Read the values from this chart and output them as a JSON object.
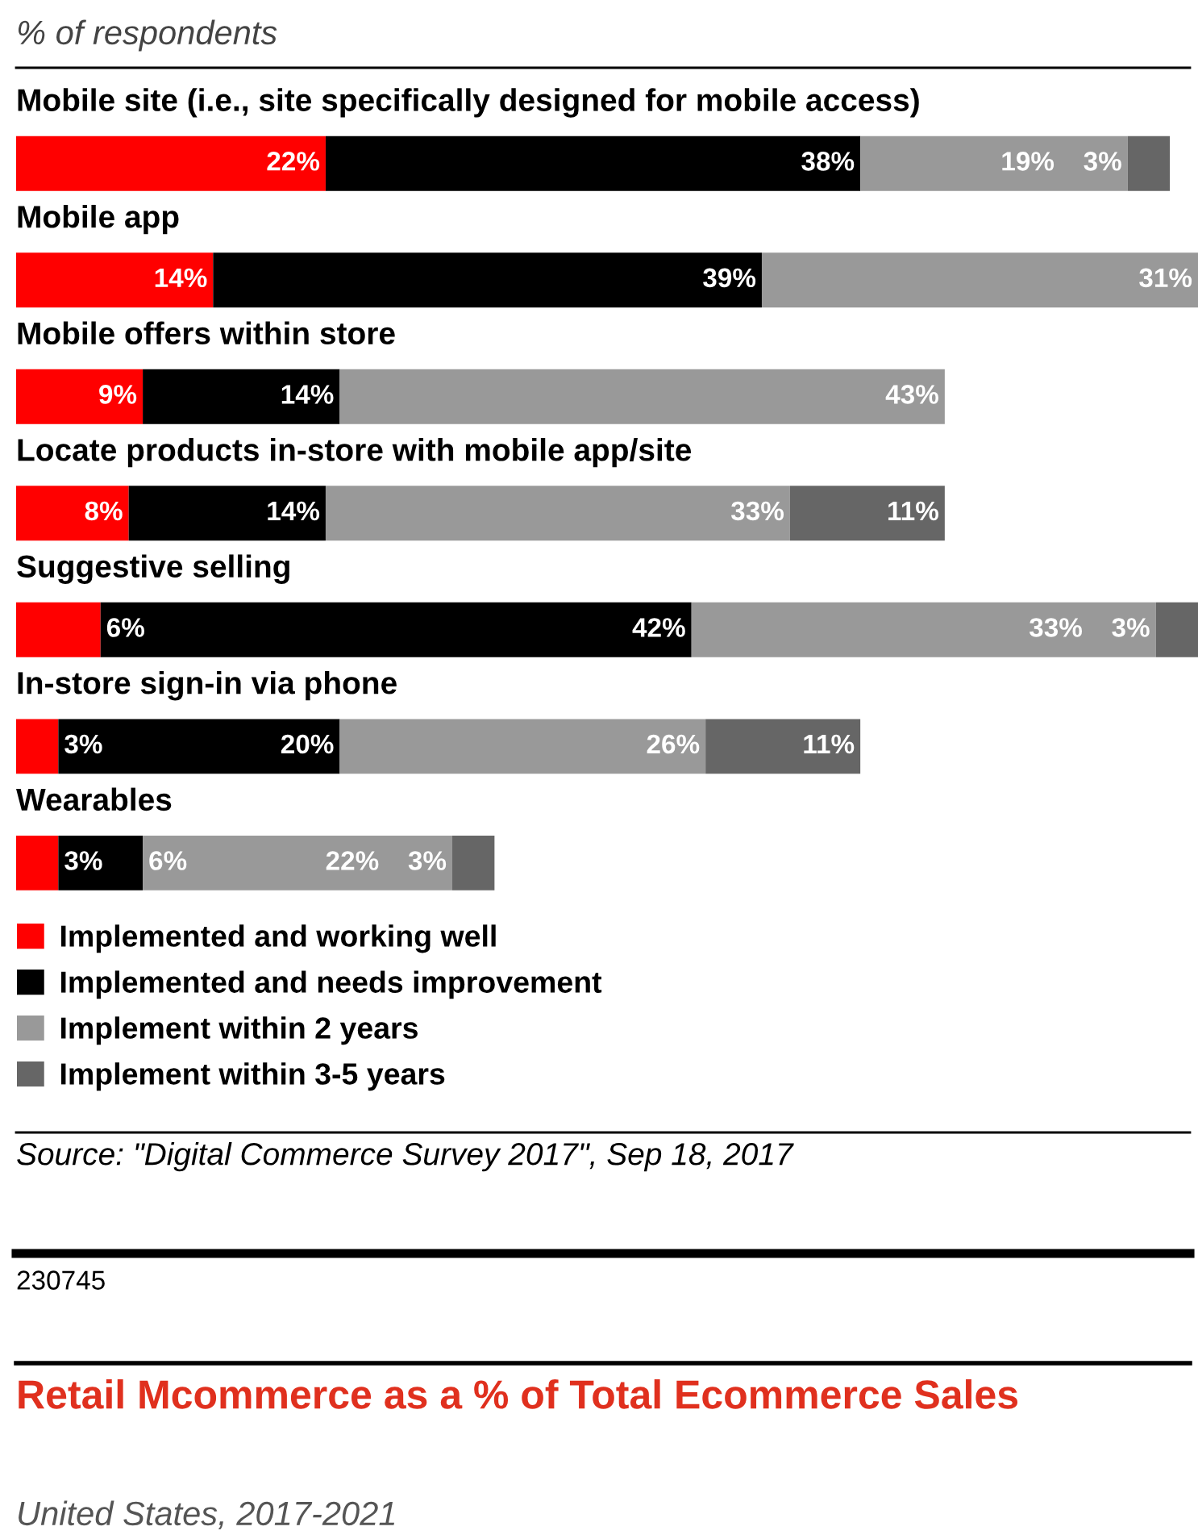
{
  "chart_data": {
    "type": "bar",
    "orientation": "horizontal",
    "stacked": true,
    "legend": "bottom",
    "title": "% of respondents",
    "categories": [
      "Mobile site (i.e., site specifically designed for mobile access)",
      "Mobile app",
      "Mobile offers within store",
      "Locate products in-store with mobile app/site",
      "Suggestive selling",
      "In-store sign-in via phone",
      "Wearables"
    ],
    "series": [
      {
        "name": "Implemented and working well",
        "color": "#ff0000",
        "values": [
          22,
          14,
          9,
          8,
          6,
          3,
          3
        ],
        "value_labels": [
          "22%",
          "14%",
          "9%",
          "8%",
          "6%",
          "3%",
          "3%"
        ]
      },
      {
        "name": "Implemented and needs improvement",
        "color": "#000000",
        "values": [
          38,
          39,
          14,
          14,
          42,
          20,
          6
        ],
        "value_labels": [
          "38%",
          "39%",
          "14%",
          "14%",
          "42%",
          "20%",
          "6%"
        ]
      },
      {
        "name": "Implement within 2 years",
        "color": "#999999",
        "values": [
          19,
          31,
          43,
          33,
          33,
          26,
          22
        ],
        "value_labels": [
          "19%",
          "31%",
          "43%",
          "33%",
          "33%",
          "26%",
          "22%"
        ]
      },
      {
        "name": "Implement within 3-5 years",
        "color": "#666666",
        "values": [
          3,
          null,
          null,
          11,
          3,
          11,
          3
        ],
        "value_labels": [
          "3%",
          null,
          null,
          "11%",
          "3%",
          "11%",
          "3%"
        ]
      }
    ],
    "annotations": [
      "Source: \"Digital Commerce Survey 2017\", Sep 18, 2017",
      "230745",
      "Retail Mcommerce as a % of Total Ecommerce Sales",
      "United States, 2017-2021"
    ]
  }
}
